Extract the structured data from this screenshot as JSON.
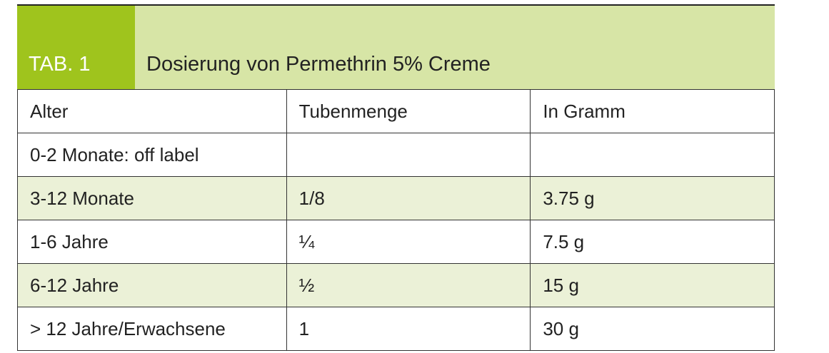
{
  "header": {
    "tab": "TAB. 1",
    "title": "Dosierung von Permethrin 5% Creme"
  },
  "table": {
    "columns": [
      "Alter",
      "Tubenmenge",
      "In Gramm"
    ],
    "rows": [
      [
        "0-2 Monate: off label",
        null,
        null
      ],
      [
        "3-12 Monate",
        "1/8",
        "3.75 g"
      ],
      [
        "1-6 Jahre",
        "¼",
        "7.5 g"
      ],
      [
        "6-12 Jahre",
        "½",
        "15 g"
      ],
      [
        "> 12 Jahre/Erwachsene",
        "1",
        "30 g"
      ]
    ]
  }
}
